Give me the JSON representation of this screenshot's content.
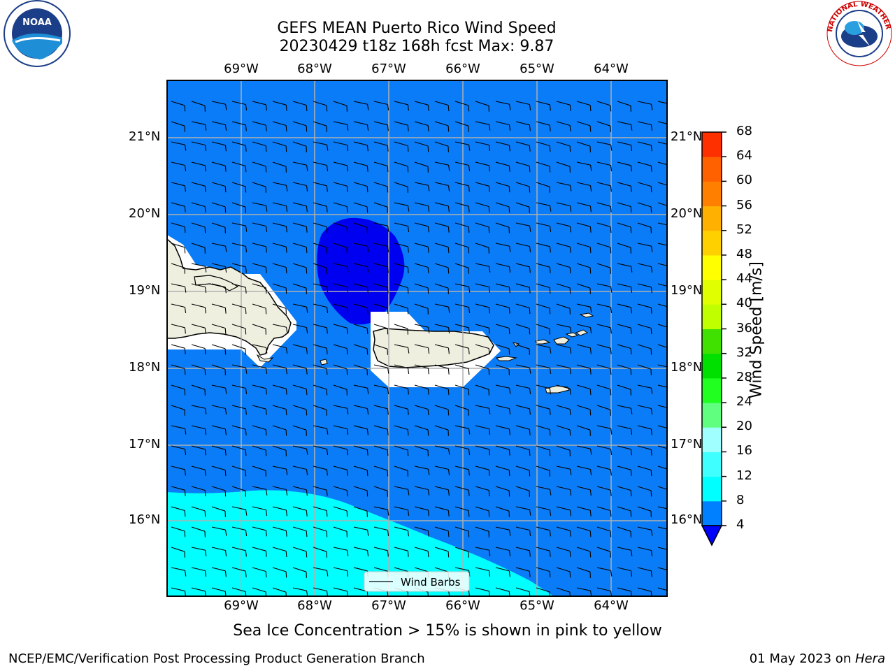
{
  "title_line1": "GEFS MEAN Puerto Rico Wind Speed",
  "title_line2": "20230429 t18z 168h fcst   Max: 9.87",
  "lon_labels": [
    "69°W",
    "68°W",
    "67°W",
    "66°W",
    "65°W",
    "64°W"
  ],
  "lat_labels": [
    "21°N",
    "20°N",
    "19°N",
    "18°N",
    "17°N",
    "16°N"
  ],
  "legend_label": "Wind Barbs",
  "colorbar": {
    "label": "Wind Speed [m/s]",
    "ticks": [
      "68",
      "64",
      "60",
      "56",
      "52",
      "48",
      "44",
      "40",
      "36",
      "32",
      "28",
      "24",
      "20",
      "16",
      "12",
      "8",
      "4"
    ],
    "colors": [
      "#0000ff",
      "#0080ff",
      "#00ffff",
      "#40ffff",
      "#a0ffff",
      "#60ff80",
      "#20ff20",
      "#00e000",
      "#40e000",
      "#c0ff00",
      "#e0ff00",
      "#ffff00",
      "#ffd000",
      "#ffb000",
      "#ff8000",
      "#ff6000",
      "#ff3000",
      "#ff0000"
    ]
  },
  "note": "Sea Ice Concentration > 15% is shown in pink to yellow",
  "footer_left": "NCEP/EMC/Verification Post Processing Product Generation Branch",
  "footer_right_date": "01 May 2023 on ",
  "footer_right_host": "Hera",
  "logos": {
    "left_icon": "noaa-logo",
    "right_icon": "nws-logo",
    "noaa_text": "NOAA",
    "nws_text": "NATIONAL WEATHER SERVICE"
  },
  "colors": {
    "ocean": "#0a7cf7",
    "strong_wind": "#00ffff",
    "weak_wind": "#0000f0",
    "land": "#efefdf"
  }
}
